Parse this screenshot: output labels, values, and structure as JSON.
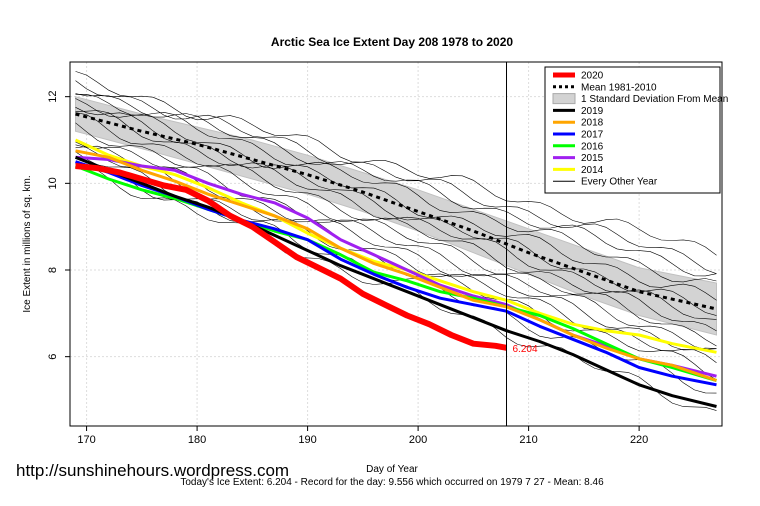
{
  "chart_data": {
    "type": "line",
    "title": "Arctic Sea Ice Extent Day 208 1978 to 2020",
    "xlabel": "Day of Year",
    "ylabel": "Ice Extent in millions of sq. km.",
    "xlim": [
      168.5,
      227.5
    ],
    "ylim": [
      4.4,
      12.8
    ],
    "xticks": [
      170,
      180,
      190,
      200,
      210,
      220
    ],
    "yticks": [
      6,
      8,
      10,
      12
    ],
    "grid": true,
    "legend_position": "top-right",
    "current_day": 208,
    "current_value_label": "6.204",
    "mean": {
      "name": "Mean 1981-2010",
      "x": [
        169,
        175,
        180,
        185,
        190,
        195,
        200,
        205,
        210,
        215,
        220,
        227
      ],
      "y": [
        11.6,
        11.2,
        10.9,
        10.55,
        10.2,
        9.8,
        9.35,
        8.9,
        8.4,
        7.95,
        7.5,
        7.1
      ]
    },
    "std_band": {
      "name": "1 Standard Deviation From Mean",
      "x": [
        169,
        175,
        180,
        185,
        190,
        195,
        200,
        205,
        210,
        215,
        220,
        227
      ],
      "upper": [
        12.0,
        11.6,
        11.3,
        11.0,
        10.65,
        10.25,
        9.85,
        9.4,
        8.95,
        8.5,
        8.05,
        7.7
      ],
      "lower": [
        11.2,
        10.8,
        10.45,
        10.1,
        9.75,
        9.35,
        8.9,
        8.4,
        7.9,
        7.4,
        6.95,
        6.5
      ]
    },
    "series": [
      {
        "name": "2020",
        "color": "#ff0000",
        "x": [
          169,
          171,
          173,
          175,
          177,
          179,
          181,
          183,
          185,
          187,
          189,
          191,
          193,
          195,
          197,
          199,
          201,
          203,
          205,
          207,
          208
        ],
        "y": [
          10.4,
          10.35,
          10.25,
          10.1,
          9.95,
          9.85,
          9.6,
          9.25,
          9.0,
          8.65,
          8.3,
          8.05,
          7.8,
          7.45,
          7.2,
          6.95,
          6.75,
          6.5,
          6.3,
          6.25,
          6.204
        ]
      },
      {
        "name": "2019",
        "color": "#000000",
        "x": [
          169,
          172,
          175,
          178,
          181,
          184,
          187,
          190,
          193,
          196,
          199,
          202,
          205,
          208,
          211,
          214,
          217,
          220,
          223,
          227
        ],
        "y": [
          10.6,
          10.3,
          10.0,
          9.7,
          9.45,
          9.15,
          8.8,
          8.45,
          8.1,
          7.8,
          7.5,
          7.2,
          6.9,
          6.6,
          6.35,
          6.05,
          5.7,
          5.35,
          5.1,
          4.85
        ]
      },
      {
        "name": "2018",
        "color": "#ffa500",
        "x": [
          169,
          172,
          175,
          178,
          181,
          184,
          187,
          190,
          193,
          196,
          199,
          202,
          205,
          208,
          211,
          214,
          217,
          220,
          223,
          227
        ],
        "y": [
          10.75,
          10.6,
          10.3,
          10.05,
          9.75,
          9.5,
          9.25,
          8.95,
          8.5,
          8.15,
          7.9,
          7.6,
          7.3,
          7.15,
          6.85,
          6.5,
          6.2,
          5.95,
          5.8,
          5.45
        ]
      },
      {
        "name": "2017",
        "color": "#0000ff",
        "x": [
          169,
          172,
          175,
          178,
          181,
          184,
          187,
          190,
          193,
          196,
          199,
          202,
          205,
          208,
          211,
          214,
          217,
          220,
          223,
          227
        ],
        "y": [
          10.5,
          10.25,
          9.95,
          9.7,
          9.4,
          9.15,
          8.95,
          8.7,
          8.25,
          7.9,
          7.6,
          7.35,
          7.2,
          7.05,
          6.7,
          6.4,
          6.1,
          5.75,
          5.55,
          5.35
        ]
      },
      {
        "name": "2016",
        "color": "#00ff00",
        "x": [
          169,
          172,
          175,
          178,
          181,
          184,
          187,
          190,
          193,
          196,
          199,
          202,
          205,
          208,
          211,
          214,
          217,
          220,
          223,
          227
        ],
        "y": [
          10.4,
          10.1,
          9.85,
          9.65,
          9.4,
          9.15,
          8.9,
          8.7,
          8.35,
          7.95,
          7.75,
          7.5,
          7.35,
          7.15,
          6.95,
          6.65,
          6.3,
          5.95,
          5.75,
          5.45
        ]
      },
      {
        "name": "2015",
        "color": "#a020f0",
        "x": [
          169,
          172,
          175,
          178,
          181,
          184,
          187,
          190,
          193,
          196,
          199,
          202,
          205,
          208,
          211,
          214,
          217,
          220,
          223,
          227
        ],
        "y": [
          10.6,
          10.55,
          10.4,
          10.3,
          10.0,
          9.75,
          9.55,
          9.2,
          8.7,
          8.35,
          8.0,
          7.65,
          7.4,
          7.2,
          6.85,
          6.5,
          6.25,
          5.95,
          5.8,
          5.55
        ]
      },
      {
        "name": "2014",
        "color": "#ffff00",
        "x": [
          169,
          172,
          175,
          178,
          181,
          184,
          187,
          190,
          193,
          196,
          199,
          202,
          205,
          208,
          211,
          214,
          217,
          220,
          223,
          227
        ],
        "y": [
          11.0,
          10.65,
          10.4,
          10.2,
          9.9,
          9.55,
          9.25,
          8.85,
          8.5,
          8.2,
          8.0,
          7.75,
          7.5,
          7.3,
          7.0,
          6.75,
          6.6,
          6.5,
          6.3,
          6.1
        ]
      }
    ],
    "other_years_name": "Every Other Year",
    "other_years": [
      {
        "y0": 12.4,
        "y1": 8.4
      },
      {
        "y0": 12.3,
        "y1": 8.1
      },
      {
        "y0": 12.2,
        "y1": 7.9
      },
      {
        "y0": 12.1,
        "y1": 7.6
      },
      {
        "y0": 11.9,
        "y1": 7.3
      },
      {
        "y0": 11.8,
        "y1": 7.0
      },
      {
        "y0": 11.7,
        "y1": 6.8
      },
      {
        "y0": 11.5,
        "y1": 6.6
      },
      {
        "y0": 11.3,
        "y1": 6.4
      },
      {
        "y0": 11.1,
        "y1": 6.2
      },
      {
        "y0": 10.95,
        "y1": 6.0
      },
      {
        "y0": 10.8,
        "y1": 5.8
      },
      {
        "y0": 10.65,
        "y1": 5.6
      },
      {
        "y0": 10.5,
        "y1": 5.2
      },
      {
        "y0": 10.4,
        "y1": 4.7
      }
    ]
  },
  "legend": {
    "items": [
      {
        "label": "2020",
        "color": "#ff0000",
        "kind": "thick"
      },
      {
        "label": "Mean 1981-2010",
        "color": "#000000",
        "kind": "dotted"
      },
      {
        "label": "1 Standard Deviation From Mean",
        "color": "#d3d3d3",
        "kind": "band"
      },
      {
        "label": "2019",
        "color": "#000000",
        "kind": "line"
      },
      {
        "label": "2018",
        "color": "#ffa500",
        "kind": "line"
      },
      {
        "label": "2017",
        "color": "#0000ff",
        "kind": "line"
      },
      {
        "label": "2016",
        "color": "#00ff00",
        "kind": "line"
      },
      {
        "label": "2015",
        "color": "#a020f0",
        "kind": "line"
      },
      {
        "label": "2014",
        "color": "#ffff00",
        "kind": "line"
      },
      {
        "label": "Every Other Year",
        "color": "#000000",
        "kind": "thin"
      }
    ]
  },
  "footer": {
    "url": "http://sunshinehours.wordpress.com",
    "summary": "Today's Ice Extent: 6.204  - Record for the day: 9.556 which occurred on 1979 7 27  - Mean: 8.46"
  }
}
